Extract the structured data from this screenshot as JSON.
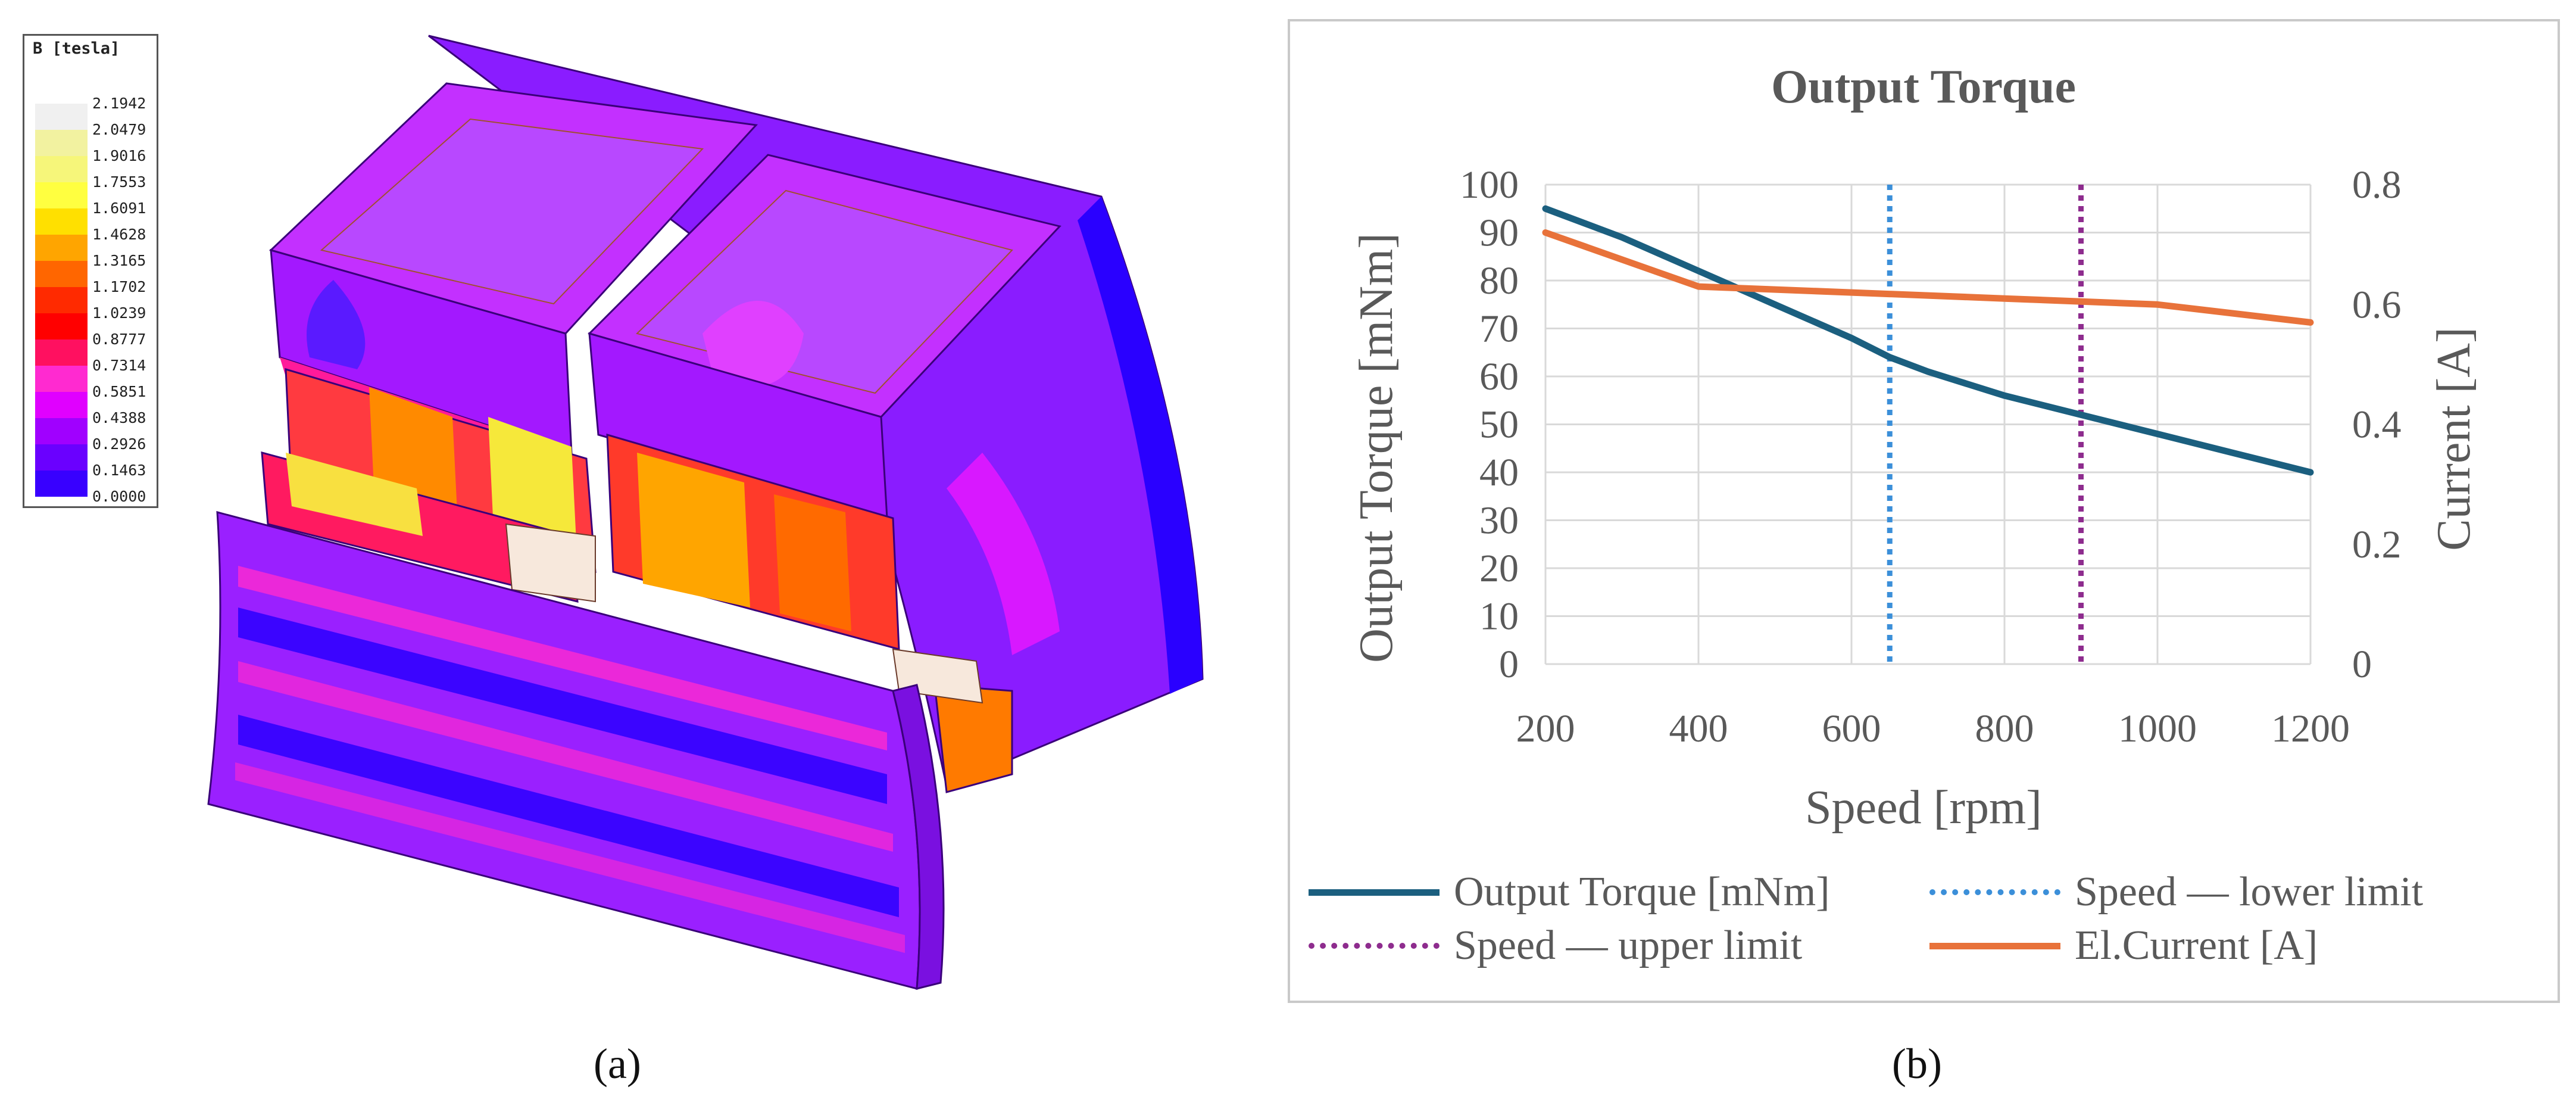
{
  "panel_a": {
    "label": "(a)",
    "colorbar": {
      "title": "B [tesla]",
      "ticks": [
        "2.1942",
        "2.0479",
        "1.9016",
        "1.7553",
        "1.6091",
        "1.4628",
        "1.3165",
        "1.1702",
        "1.0239",
        "0.8777",
        "0.7314",
        "0.5851",
        "0.4388",
        "0.2926",
        "0.1463",
        "0.0000"
      ],
      "colors": [
        "#f0f0f0",
        "#f2f2a0",
        "#f6f67a",
        "#ffff40",
        "#ffe000",
        "#ffa500",
        "#ff6600",
        "#ff2a00",
        "#ff0000",
        "#ff1060",
        "#ff2ad0",
        "#e000ff",
        "#a000ff",
        "#6a00ff",
        "#3800ff"
      ]
    }
  },
  "panel_b": {
    "label": "(b)"
  },
  "colors": {
    "torque": "#1b5f7f",
    "current": "#e8723a",
    "lower": "#3b8fd9",
    "upper": "#8e2c8e",
    "grid": "#d9d9d9",
    "text": "#595959"
  },
  "chart_data": {
    "type": "line",
    "title": "Output Torque",
    "xlabel": "Speed [rpm]",
    "ylabel": "Output Torque [mNm]",
    "y2label": "Current [A]",
    "xlim": [
      200,
      1200
    ],
    "ylim": [
      0,
      100
    ],
    "y2lim": [
      0,
      0.8
    ],
    "xticks": [
      "200",
      "400",
      "600",
      "800",
      "1000",
      "1200"
    ],
    "yticks": [
      "0",
      "10",
      "20",
      "30",
      "40",
      "50",
      "60",
      "70",
      "80",
      "90",
      "100"
    ],
    "y2ticks": [
      "0",
      "0.2",
      "0.4",
      "0.6",
      "0.8"
    ],
    "series": [
      {
        "name": "Output Torque [mNm]",
        "axis": "left",
        "x": [
          200,
          300,
          400,
          500,
          600,
          650,
          700,
          800,
          900,
          1000,
          1100,
          1200
        ],
        "values": [
          95,
          89,
          82,
          75,
          68,
          64,
          61,
          56,
          52,
          48,
          44,
          40
        ]
      },
      {
        "name": "El.Current [A]",
        "axis": "right",
        "x": [
          200,
          400,
          600,
          800,
          1000,
          1200
        ],
        "values": [
          0.72,
          0.63,
          0.62,
          0.61,
          0.6,
          0.57
        ]
      }
    ],
    "vlines": [
      {
        "name": "Speed — lower limit",
        "x": 650
      },
      {
        "name": "Speed — upper limit",
        "x": 900
      }
    ],
    "legend": [
      "Output Torque [mNm]",
      "Speed — lower limit",
      "Speed — upper limit",
      "El.Current [A]"
    ]
  }
}
